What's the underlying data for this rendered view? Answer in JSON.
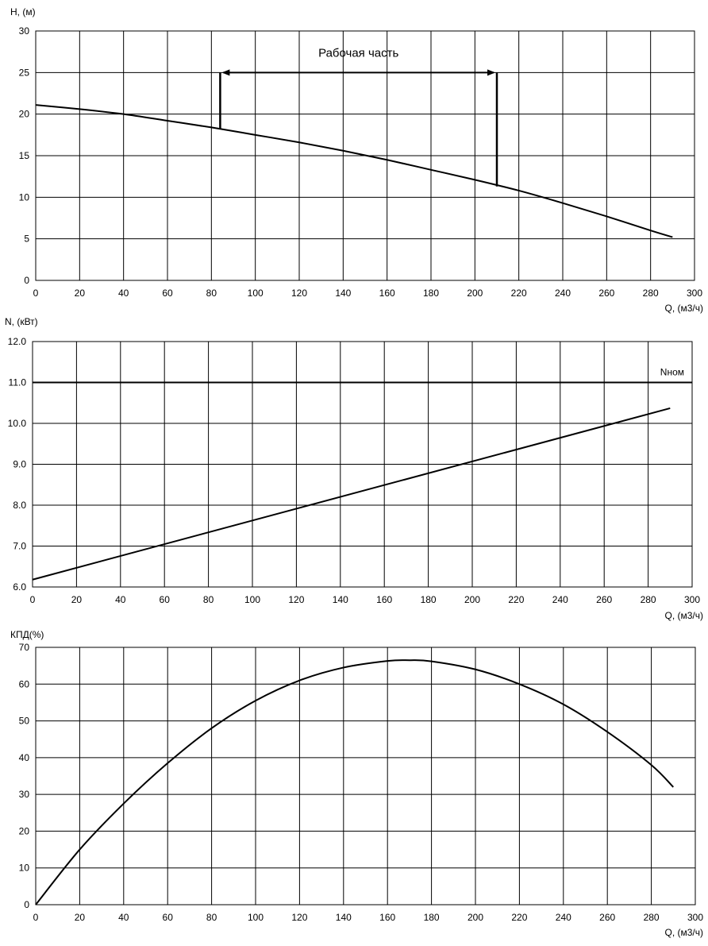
{
  "chart_data": [
    {
      "type": "line",
      "ylabel": "H, (м)",
      "xlabel": "Q, (м3/ч)",
      "xlim": [
        0,
        300
      ],
      "ylim": [
        0,
        30
      ],
      "x_ticks": [
        0,
        20,
        40,
        60,
        80,
        100,
        120,
        140,
        160,
        180,
        200,
        220,
        240,
        260,
        280,
        300
      ],
      "y_ticks": [
        0,
        5,
        10,
        15,
        20,
        25,
        30
      ],
      "y_tick_decimals": 0,
      "grid": true,
      "series": [
        {
          "x": [
            0,
            20,
            40,
            60,
            80,
            100,
            120,
            140,
            160,
            180,
            200,
            220,
            240,
            260,
            280,
            290
          ],
          "y": [
            21.1,
            20.6,
            20.0,
            19.2,
            18.4,
            17.5,
            16.6,
            15.6,
            14.5,
            13.3,
            12.1,
            10.8,
            9.3,
            7.7,
            6.0,
            5.2
          ]
        }
      ],
      "annotation": {
        "text": "Рабочая часть",
        "range_x": [
          84,
          210
        ],
        "arrow_y": 25,
        "left_bottom_y": 18.3,
        "right_bottom_y": 11.3
      }
    },
    {
      "type": "line",
      "ylabel": "N, (кВт)",
      "xlabel": "Q, (м3/ч)",
      "xlim": [
        0,
        300
      ],
      "ylim": [
        6.0,
        12.0
      ],
      "x_ticks": [
        0,
        20,
        40,
        60,
        80,
        100,
        120,
        140,
        160,
        180,
        200,
        220,
        240,
        260,
        280,
        300
      ],
      "y_ticks": [
        6.0,
        7.0,
        8.0,
        9.0,
        10.0,
        11.0,
        12.0
      ],
      "y_tick_decimals": 1,
      "grid": true,
      "series": [
        {
          "x": [
            0,
            290
          ],
          "y": [
            6.18,
            10.37
          ]
        }
      ],
      "reference_line": {
        "y": 11.0,
        "label": "Nном"
      }
    },
    {
      "type": "line",
      "ylabel": "КПД(%)",
      "xlabel": "Q, (м3/ч)",
      "xlim": [
        0,
        300
      ],
      "ylim": [
        0,
        70
      ],
      "x_ticks": [
        0,
        20,
        40,
        60,
        80,
        100,
        120,
        140,
        160,
        180,
        200,
        220,
        240,
        260,
        280,
        300
      ],
      "y_ticks": [
        0,
        10,
        20,
        30,
        40,
        50,
        60,
        70
      ],
      "y_tick_decimals": 0,
      "grid": true,
      "series": [
        {
          "x": [
            0,
            20,
            40,
            60,
            80,
            100,
            120,
            140,
            160,
            170,
            180,
            200,
            220,
            240,
            260,
            280,
            290
          ],
          "y": [
            0,
            15,
            27.5,
            38.5,
            48,
            55.5,
            61,
            64.5,
            66.3,
            66.5,
            66.2,
            64,
            60,
            54.5,
            47,
            38,
            32
          ]
        }
      ]
    }
  ]
}
